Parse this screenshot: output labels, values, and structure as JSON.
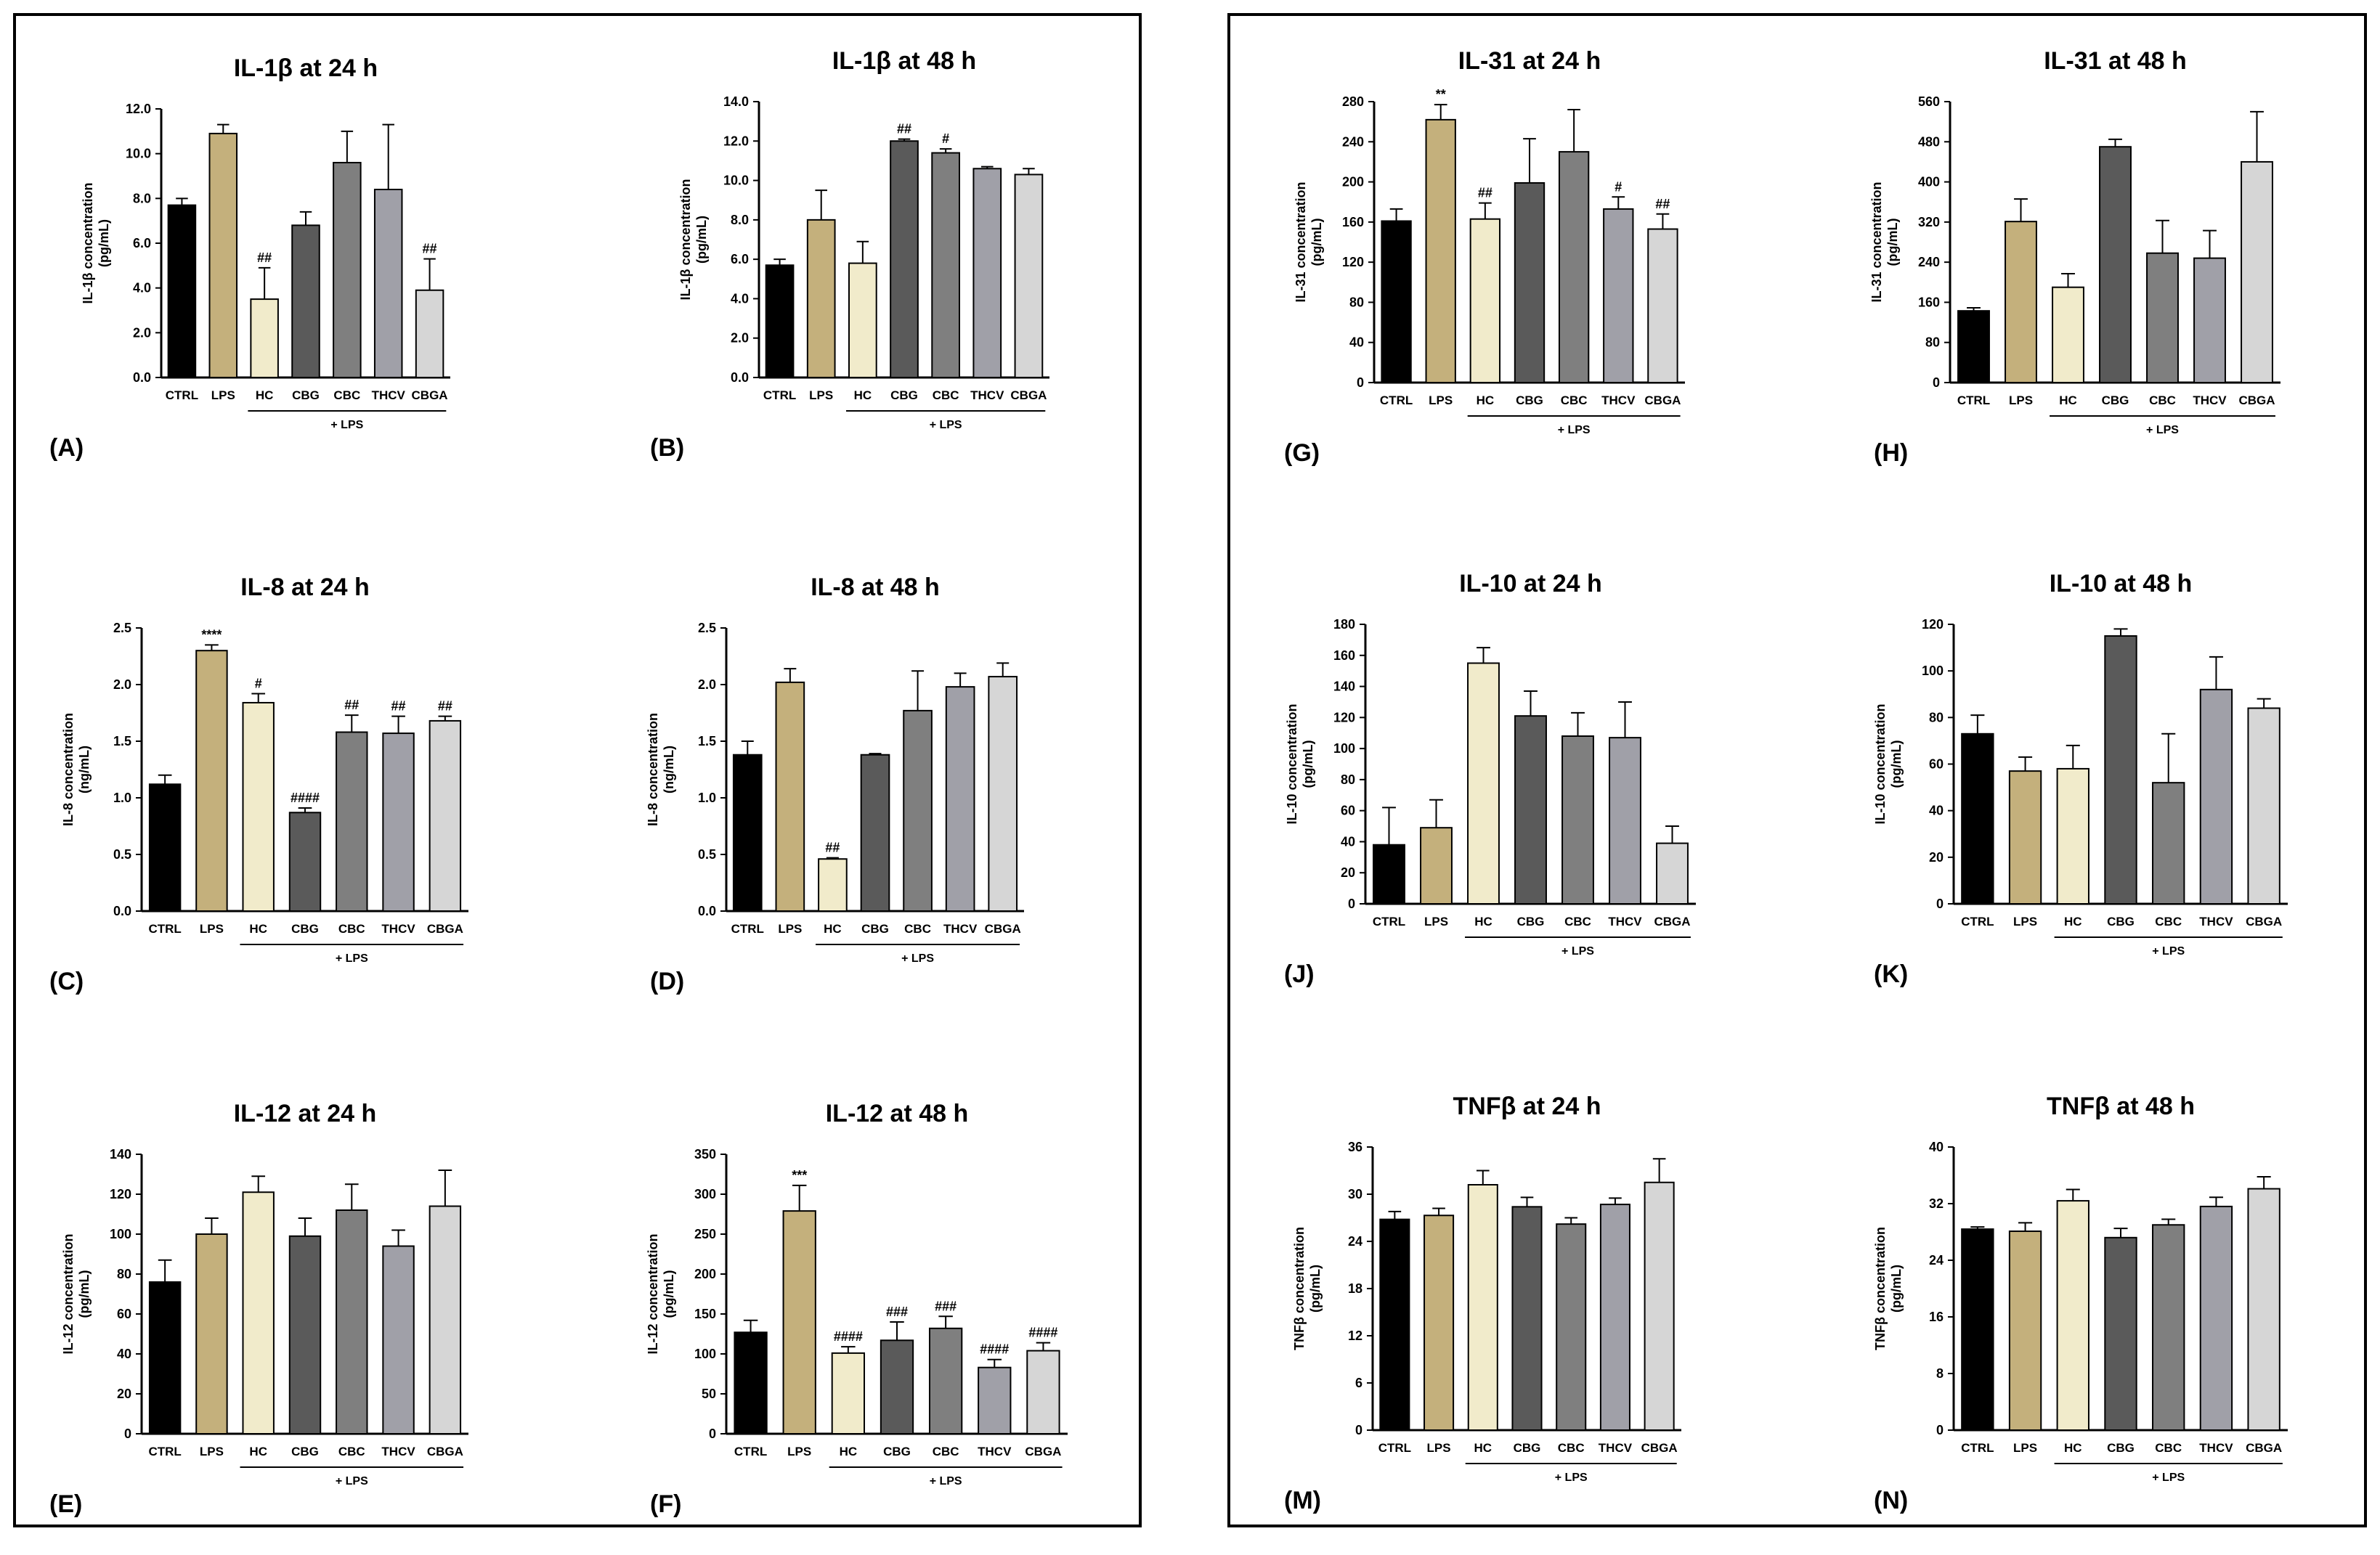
{
  "colors": {
    "CTRL": "#000000",
    "LPS": "#c4b07c",
    "HC": "#f1ebcb",
    "CBG": "#5a5a5a",
    "CBC": "#7f7f7f",
    "THCV": "#a0a0a8",
    "CBGA": "#d6d6d6"
  },
  "group_label": "+ LPS",
  "chart_data": [
    {
      "id": "A",
      "type": "bar",
      "title": "IL-1β at 24 h",
      "ylabel_line1": "IL-1β concentration",
      "ylabel_line2": "(pg/mL)",
      "categories": [
        "CTRL",
        "LPS",
        "HC",
        "CBG",
        "CBC",
        "THCV",
        "CBGA"
      ],
      "values": [
        7.7,
        10.9,
        3.5,
        6.8,
        9.6,
        8.4,
        3.9
      ],
      "errors": [
        0.3,
        0.4,
        1.4,
        0.6,
        1.4,
        2.9,
        1.4
      ],
      "annotations": [
        "",
        "",
        "##",
        "",
        "",
        "",
        "##"
      ],
      "ylim": [
        0,
        12
      ],
      "yticks": [
        0,
        2,
        4,
        6,
        8,
        10,
        12
      ],
      "tick_labels": [
        "0.0",
        "2.0",
        "4.0",
        "6.0",
        "8.0",
        "10.0",
        "12.0"
      ],
      "panel_label": "(A)"
    },
    {
      "id": "B",
      "type": "bar",
      "title": "IL-1β at 48 h",
      "ylabel_line1": "IL-1β concentration",
      "ylabel_line2": "(pg/mL)",
      "categories": [
        "CTRL",
        "LPS",
        "HC",
        "CBG",
        "CBC",
        "THCV",
        "CBGA"
      ],
      "values": [
        5.7,
        8.0,
        5.8,
        12.0,
        11.4,
        10.6,
        10.3
      ],
      "errors": [
        0.3,
        1.5,
        1.1,
        0.1,
        0.2,
        0.1,
        0.3
      ],
      "annotations": [
        "",
        "",
        "",
        "##",
        "#",
        "",
        ""
      ],
      "ylim": [
        0,
        14
      ],
      "yticks": [
        0,
        2,
        4,
        6,
        8,
        10,
        12,
        14
      ],
      "tick_labels": [
        "0.0",
        "2.0",
        "4.0",
        "6.0",
        "8.0",
        "10.0",
        "12.0",
        "14.0"
      ],
      "panel_label": "(B)"
    },
    {
      "id": "C",
      "type": "bar",
      "title": "IL-8 at 24 h",
      "ylabel_line1": "IL-8 concentration",
      "ylabel_line2": "(ng/mL)",
      "categories": [
        "CTRL",
        "LPS",
        "HC",
        "CBG",
        "CBC",
        "THCV",
        "CBGA"
      ],
      "values": [
        1.12,
        2.3,
        1.84,
        0.87,
        1.58,
        1.57,
        1.68
      ],
      "errors": [
        0.08,
        0.05,
        0.08,
        0.04,
        0.15,
        0.15,
        0.04
      ],
      "annotations": [
        "",
        "****",
        "#",
        "####",
        "##",
        "##",
        "##"
      ],
      "ylim": [
        0,
        2.5
      ],
      "yticks": [
        0,
        0.5,
        1,
        1.5,
        2,
        2.5
      ],
      "tick_labels": [
        "0.0",
        "0.5",
        "1.0",
        "1.5",
        "2.0",
        "2.5"
      ],
      "panel_label": "(C)"
    },
    {
      "id": "D",
      "type": "bar",
      "title": "IL-8 at 48 h",
      "ylabel_line1": "IL-8 concentration",
      "ylabel_line2": "(ng/mL)",
      "categories": [
        "CTRL",
        "LPS",
        "HC",
        "CBG",
        "CBC",
        "THCV",
        "CBGA"
      ],
      "values": [
        1.38,
        2.02,
        0.46,
        1.38,
        1.77,
        1.98,
        2.07
      ],
      "errors": [
        0.12,
        0.12,
        0.01,
        0.01,
        0.35,
        0.12,
        0.12
      ],
      "annotations": [
        "",
        "",
        "##",
        "",
        "",
        "",
        ""
      ],
      "ylim": [
        0,
        2.5
      ],
      "yticks": [
        0,
        0.5,
        1,
        1.5,
        2,
        2.5
      ],
      "tick_labels": [
        "0.0",
        "0.5",
        "1.0",
        "1.5",
        "2.0",
        "2.5"
      ],
      "panel_label": "(D)"
    },
    {
      "id": "E",
      "type": "bar",
      "title": "IL-12 at 24 h",
      "ylabel_line1": "IL-12 concentration",
      "ylabel_line2": "(pg/mL)",
      "categories": [
        "CTRL",
        "LPS",
        "HC",
        "CBG",
        "CBC",
        "THCV",
        "CBGA"
      ],
      "values": [
        76,
        100,
        121,
        99,
        112,
        94,
        114
      ],
      "errors": [
        11,
        8,
        8,
        9,
        13,
        8,
        18
      ],
      "annotations": [
        "",
        "",
        "",
        "",
        "",
        "",
        ""
      ],
      "ylim": [
        0,
        140
      ],
      "yticks": [
        0,
        20,
        40,
        60,
        80,
        100,
        120,
        140
      ],
      "tick_labels": [
        "0",
        "20",
        "40",
        "60",
        "80",
        "100",
        "120",
        "140"
      ],
      "panel_label": "(E)"
    },
    {
      "id": "F",
      "type": "bar",
      "title": "IL-12 at 48 h",
      "ylabel_line1": "IL-12 concentration",
      "ylabel_line2": "(pg/mL)",
      "categories": [
        "CTRL",
        "LPS",
        "HC",
        "CBG",
        "CBC",
        "THCV",
        "CBGA"
      ],
      "values": [
        127,
        279,
        101,
        117,
        132,
        83,
        104
      ],
      "errors": [
        15,
        32,
        8,
        23,
        15,
        10,
        10
      ],
      "annotations": [
        "",
        "***",
        "####",
        "###",
        "###",
        "####",
        "####"
      ],
      "ylim": [
        0,
        350
      ],
      "yticks": [
        0,
        50,
        100,
        150,
        200,
        250,
        300,
        350
      ],
      "tick_labels": [
        "0",
        "50",
        "100",
        "150",
        "200",
        "250",
        "300",
        "350"
      ],
      "panel_label": "(F)"
    },
    {
      "id": "G",
      "type": "bar",
      "title": "IL-31 at 24 h",
      "ylabel_line1": "IL-31 concentration",
      "ylabel_line2": "(pg/mL)",
      "categories": [
        "CTRL",
        "LPS",
        "HC",
        "CBG",
        "CBC",
        "THCV",
        "CBGA"
      ],
      "values": [
        161,
        262,
        163,
        199,
        230,
        173,
        153
      ],
      "errors": [
        12,
        15,
        16,
        44,
        42,
        12,
        15
      ],
      "annotations": [
        "",
        "**",
        "##",
        "",
        "",
        "#",
        "##"
      ],
      "ylim": [
        0,
        280
      ],
      "yticks": [
        0,
        40,
        80,
        120,
        160,
        200,
        240,
        280
      ],
      "tick_labels": [
        "0",
        "40",
        "80",
        "120",
        "160",
        "200",
        "240",
        "280"
      ],
      "panel_label": "(G)"
    },
    {
      "id": "H",
      "type": "bar",
      "title": "IL-31 at 48 h",
      "ylabel_line1": "IL-31 concentration",
      "ylabel_line2": "(pg/mL)",
      "categories": [
        "CTRL",
        "LPS",
        "HC",
        "CBG",
        "CBC",
        "THCV",
        "CBGA"
      ],
      "values": [
        143,
        321,
        190,
        470,
        258,
        248,
        440
      ],
      "errors": [
        6,
        45,
        27,
        15,
        65,
        55,
        100
      ],
      "annotations": [
        "",
        "",
        "",
        "",
        "",
        "",
        ""
      ],
      "ylim": [
        0,
        560
      ],
      "yticks": [
        0,
        80,
        160,
        240,
        320,
        400,
        480,
        560
      ],
      "tick_labels": [
        "0",
        "80",
        "160",
        "240",
        "320",
        "400",
        "480",
        "560"
      ],
      "panel_label": "(H)"
    },
    {
      "id": "J",
      "type": "bar",
      "title": "IL-10 at 24 h",
      "ylabel_line1": "IL-10 concentration",
      "ylabel_line2": "(pg/mL)",
      "categories": [
        "CTRL",
        "LPS",
        "HC",
        "CBG",
        "CBC",
        "THCV",
        "CBGA"
      ],
      "values": [
        38,
        49,
        155,
        121,
        108,
        107,
        39
      ],
      "errors": [
        24,
        18,
        10,
        16,
        15,
        23,
        11
      ],
      "annotations": [
        "",
        "",
        "",
        "",
        "",
        "",
        ""
      ],
      "ylim": [
        0,
        180
      ],
      "yticks": [
        0,
        20,
        40,
        60,
        80,
        100,
        120,
        140,
        160,
        180
      ],
      "tick_labels": [
        "0",
        "20",
        "40",
        "60",
        "80",
        "100",
        "120",
        "140",
        "160",
        "180"
      ],
      "panel_label": "(J)"
    },
    {
      "id": "K",
      "type": "bar",
      "title": "IL-10 at 48 h",
      "ylabel_line1": "IL-10 concentration",
      "ylabel_line2": "(pg/mL)",
      "categories": [
        "CTRL",
        "LPS",
        "HC",
        "CBG",
        "CBC",
        "THCV",
        "CBGA"
      ],
      "values": [
        73,
        57,
        58,
        115,
        52,
        92,
        84
      ],
      "errors": [
        8,
        6,
        10,
        3,
        21,
        14,
        4
      ],
      "annotations": [
        "",
        "",
        "",
        "",
        "",
        "",
        ""
      ],
      "ylim": [
        0,
        120
      ],
      "yticks": [
        0,
        20,
        40,
        60,
        80,
        100,
        120
      ],
      "tick_labels": [
        "0",
        "20",
        "40",
        "60",
        "80",
        "100",
        "120"
      ],
      "panel_label": "(K)"
    },
    {
      "id": "M",
      "type": "bar",
      "title": "TNFβ at 24 h",
      "ylabel_line1": "TNFβ concentration",
      "ylabel_line2": "(pg/mL)",
      "categories": [
        "CTRL",
        "LPS",
        "HC",
        "CBG",
        "CBC",
        "THCV",
        "CBGA"
      ],
      "values": [
        26.8,
        27.3,
        31.2,
        28.4,
        26.2,
        28.7,
        31.5
      ],
      "errors": [
        1,
        0.9,
        1.8,
        1.2,
        0.8,
        0.8,
        3
      ],
      "annotations": [
        "",
        "",
        "",
        "",
        "",
        "",
        ""
      ],
      "ylim": [
        0,
        36
      ],
      "yticks": [
        0,
        6,
        12,
        18,
        24,
        30,
        36
      ],
      "tick_labels": [
        "0",
        "6",
        "12",
        "18",
        "24",
        "30",
        "36"
      ],
      "panel_label": "(M)"
    },
    {
      "id": "N",
      "type": "bar",
      "title": "TNFβ at 48 h",
      "ylabel_line1": "TNFβ concentration",
      "ylabel_line2": "(pg/mL)",
      "categories": [
        "CTRL",
        "LPS",
        "HC",
        "CBG",
        "CBC",
        "THCV",
        "CBGA"
      ],
      "values": [
        28.4,
        28.1,
        32.4,
        27.2,
        29.0,
        31.6,
        34.1
      ],
      "errors": [
        0.3,
        1.2,
        1.6,
        1.3,
        0.8,
        1.3,
        1.7
      ],
      "annotations": [
        "",
        "",
        "",
        "",
        "",
        "",
        ""
      ],
      "ylim": [
        0,
        40
      ],
      "yticks": [
        0,
        8,
        16,
        24,
        32,
        40
      ],
      "tick_labels": [
        "0",
        "8",
        "16",
        "24",
        "32",
        "40"
      ],
      "panel_label": "(N)"
    }
  ]
}
